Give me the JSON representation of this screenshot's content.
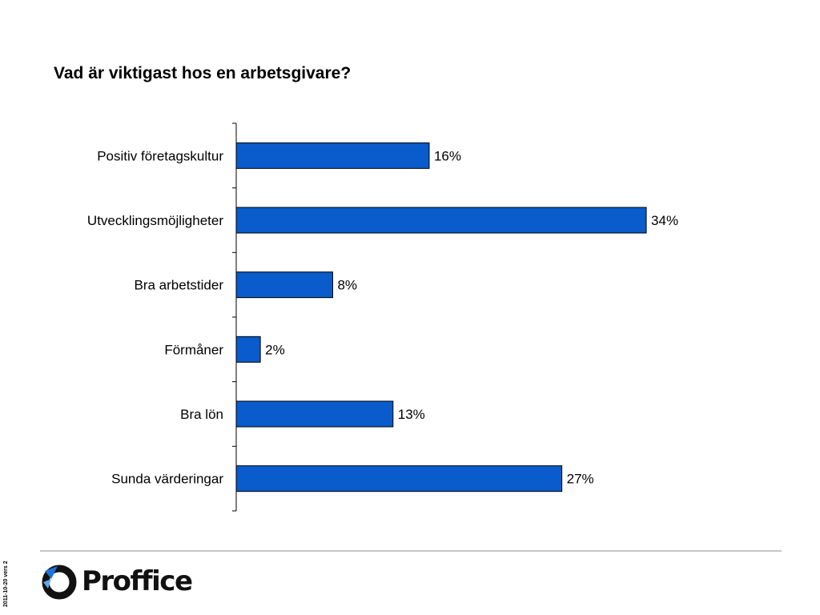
{
  "slide": {
    "title": "Vad är viktigast hos en arbetsgivare?"
  },
  "footer": {
    "version": "2011-10-20 vers 2",
    "brand": "Proffice"
  },
  "colors": {
    "bar_fill": "#0A5BCB",
    "bar_stroke": "#000000",
    "axis": "#000000",
    "divider": "#C8C8C8",
    "logo_blue": "#1E73D8",
    "logo_dark": "#111111"
  },
  "chart_data": {
    "type": "bar",
    "orientation": "horizontal",
    "categories": [
      "Positiv företagskultur",
      "Utvecklingsmöjligheter",
      "Bra arbetstider",
      "Förmåner",
      "Bra lön",
      "Sunda värderingar"
    ],
    "values": [
      16,
      34,
      8,
      2,
      13,
      27
    ],
    "data_labels": [
      "16%",
      "34%",
      "8%",
      "2%",
      "13%",
      "27%"
    ],
    "unit": "%",
    "xlim": [
      0,
      45
    ],
    "grid": false,
    "legend": "none"
  }
}
